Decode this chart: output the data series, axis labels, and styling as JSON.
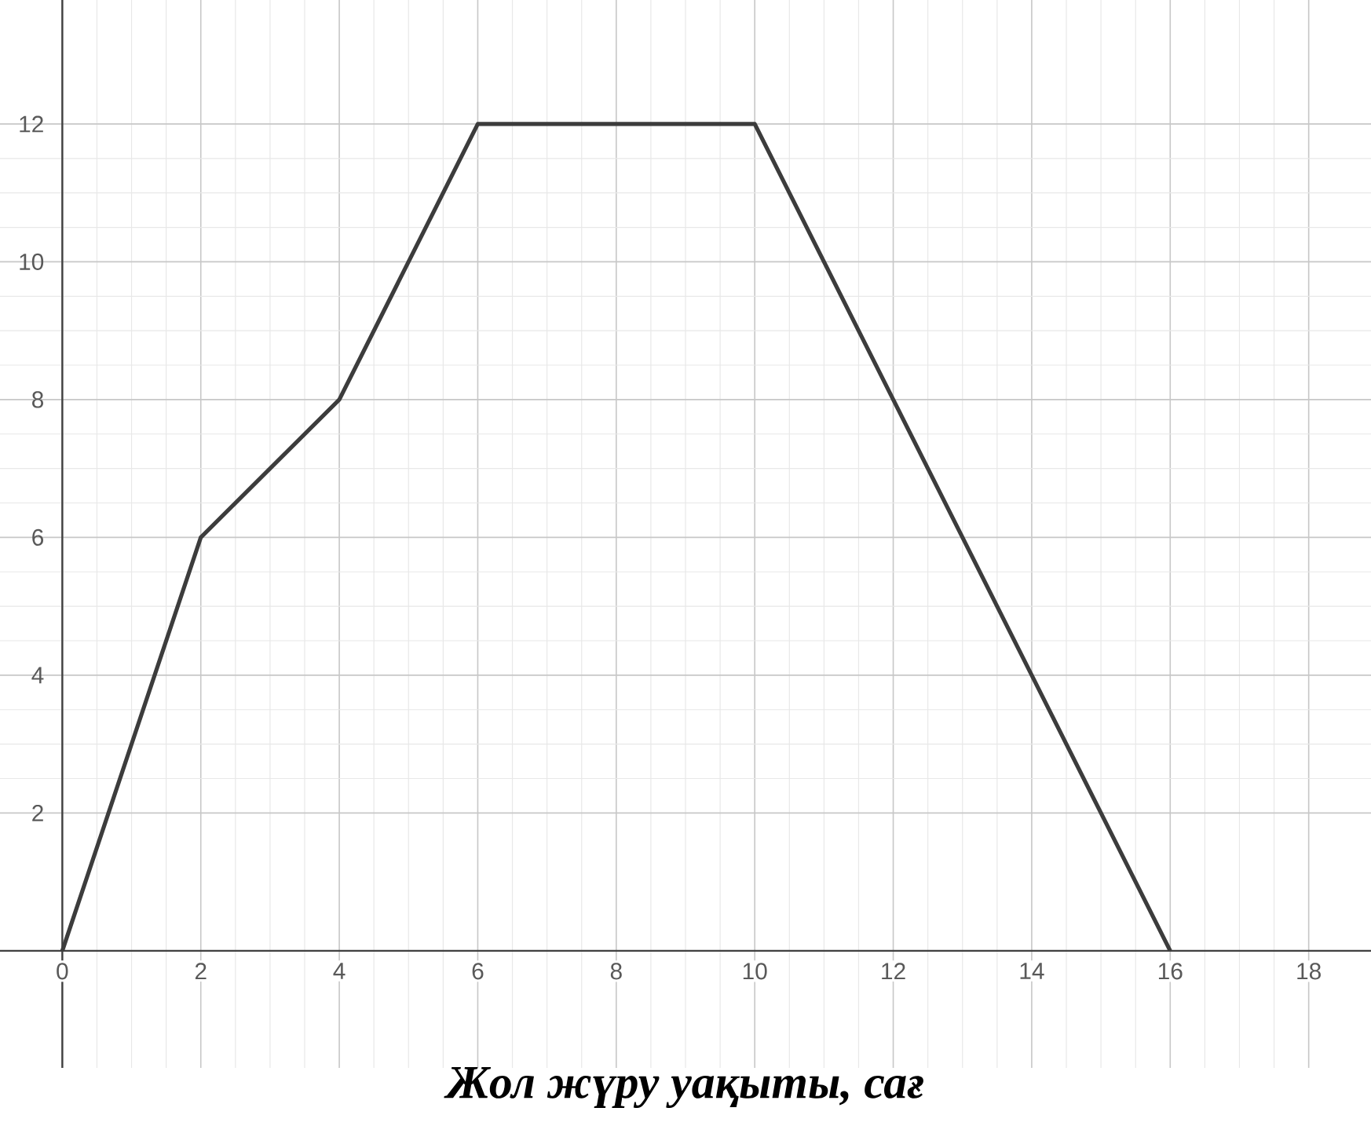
{
  "chart_data": {
    "type": "line",
    "xlabel": "Жол жүру уақыты, сағ",
    "x": [
      0,
      2,
      4,
      6,
      10,
      16
    ],
    "values": [
      0,
      6,
      8,
      12,
      12,
      0
    ],
    "color": "#3c3c3c",
    "xlim": [
      -0.9,
      18.9
    ],
    "ylim": [
      -1.7,
      13.8
    ],
    "xticks": [
      0,
      2,
      4,
      6,
      8,
      10,
      12,
      14,
      16,
      18
    ],
    "yticks": [
      2,
      4,
      6,
      8,
      10,
      12
    ],
    "grid": true
  }
}
